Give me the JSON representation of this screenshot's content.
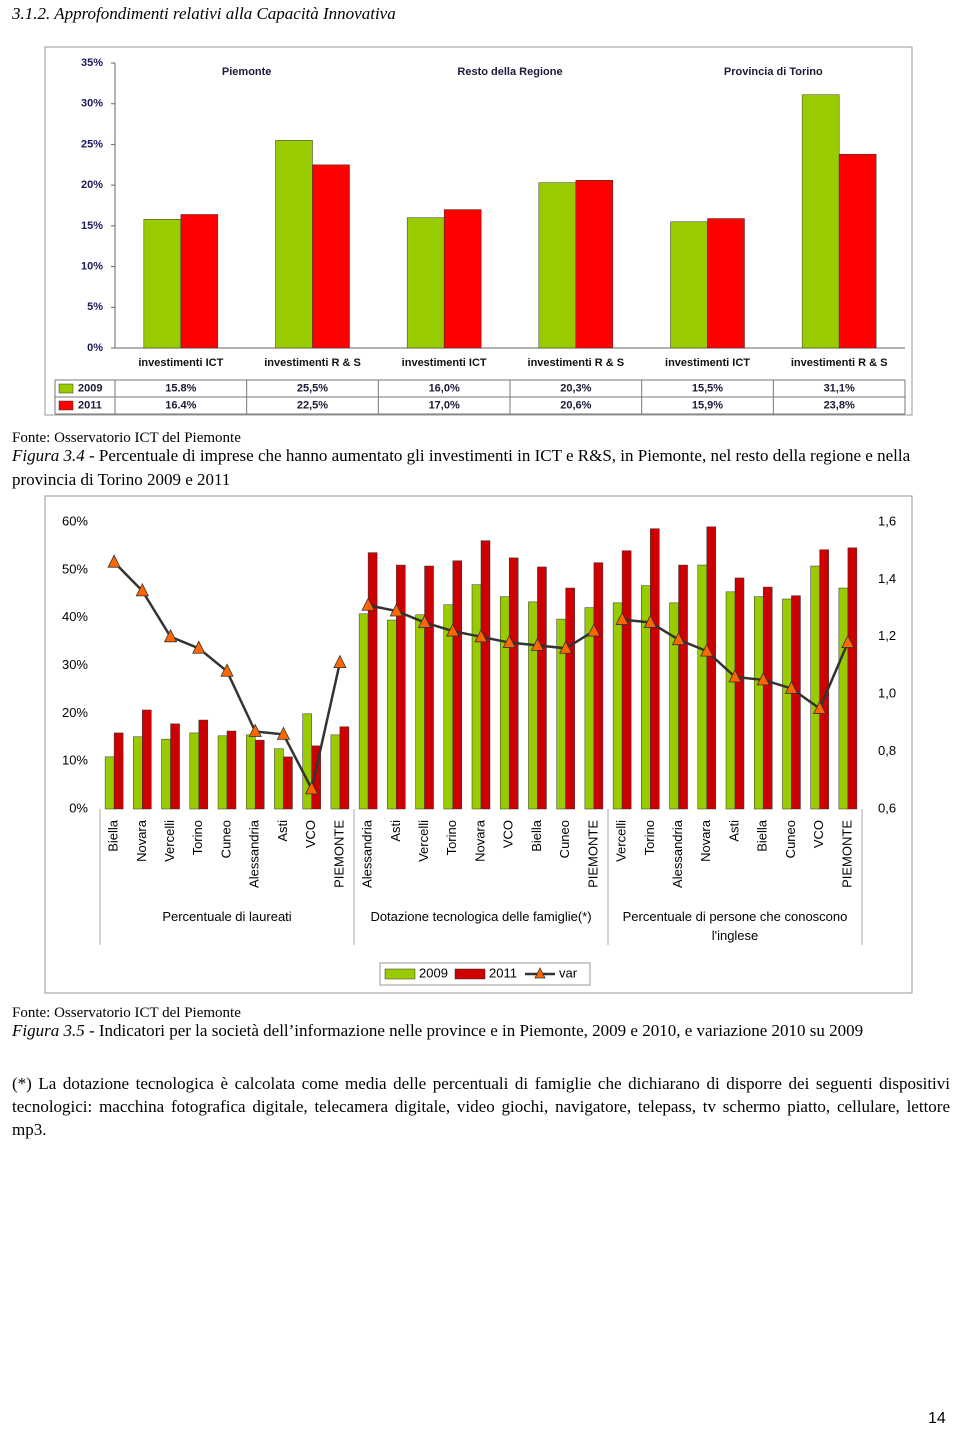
{
  "heading": "3.1.2. Approfondimenti relativi alla Capacità Innovativa",
  "figures": [
    {
      "source": "Fonte: Osservatorio ICT del Piemonte",
      "label": "Figura 3.4",
      "caption": " - Percentuale di imprese che hanno aumentato gli investimenti in ICT e R&S, in Piemonte, nel resto della regione  e nella provincia di Torino 2009 e 2011"
    },
    {
      "source": "Fonte: Osservatorio ICT del Piemonte",
      "label": "Figura 3.5",
      "caption": " - Indicatori per la società dell’informazione nelle province e in Piemonte, 2009 e 2010, e variazione 2010 su 2009"
    }
  ],
  "note": "(*) La dotazione tecnologica è calcolata come media delle percentuali di famiglie che dichiarano di disporre dei seguenti dispositivi tecnologici: macchina fotografica digitale, telecamera digitale, video giochi, navigatore, telepass, tv schermo piatto, cellulare, lettore mp3.",
  "page_number": "14",
  "chart_data": [
    {
      "type": "bar",
      "groups": [
        "Piemonte",
        "Resto della Regione",
        "Provincia di Torino"
      ],
      "categories": [
        [
          "investimenti ICT",
          "investimenti R & S"
        ],
        [
          "investimenti ICT",
          "investimenti R & S"
        ],
        [
          "investimenti ICT",
          "investimenti R & S"
        ]
      ],
      "series": [
        {
          "name": "2009",
          "color": "#99cc00",
          "values": [
            [
              15.8,
              25.5
            ],
            [
              16.0,
              20.3
            ],
            [
              15.5,
              31.1
            ]
          ],
          "value_labels": [
            [
              "15.8%",
              "25,5%"
            ],
            [
              "16,0%",
              "20,3%"
            ],
            [
              "15,5%",
              "31,1%"
            ]
          ]
        },
        {
          "name": "2011",
          "color": "#ff0000",
          "values": [
            [
              16.4,
              22.5
            ],
            [
              17.0,
              20.6
            ],
            [
              15.9,
              23.8
            ]
          ],
          "value_labels": [
            [
              "16.4%",
              "22,5%"
            ],
            [
              "17,0%",
              "20,6%"
            ],
            [
              "15,9%",
              "23,8%"
            ]
          ]
        }
      ],
      "ylim": [
        0,
        35
      ],
      "yticks": [
        {
          "value": 0,
          "label": "0%"
        },
        {
          "value": 5,
          "label": "5%"
        },
        {
          "value": 10,
          "label": "10%"
        },
        {
          "value": 15,
          "label": "15%"
        },
        {
          "value": 20,
          "label": "20%"
        },
        {
          "value": 25,
          "label": "25%"
        },
        {
          "value": 30,
          "label": "30%"
        },
        {
          "value": 35,
          "label": "35%"
        }
      ]
    },
    {
      "type": "bar-line",
      "groups": [
        "Percentuale di laureati",
        "Dotazione tecnologica delle famiglie(*)",
        "Percentuale di persone che conoscono l'inglese"
      ],
      "categories": [
        [
          "Biella",
          "Novara",
          "Vercelli",
          "Torino",
          "Cuneo",
          "Alessandria",
          "Asti",
          "VCO",
          "PIEMONTE"
        ],
        [
          "Alessandria",
          "Asti",
          "Vercelli",
          "Torino",
          "Novara",
          "VCO",
          "Biella",
          "Cuneo",
          "PIEMONTE"
        ],
        [
          "Vercelli",
          "Torino",
          "Alessandria",
          "Novara",
          "Asti",
          "Biella",
          "Cuneo",
          "VCO",
          "PIEMONTE"
        ]
      ],
      "series": [
        {
          "name": "2009",
          "color": "#99cc00",
          "values": [
            [
              10.9,
              15.1,
              14.6,
              15.9,
              15.3,
              15.5,
              12.6,
              19.9,
              15.5
            ],
            [
              40.8,
              39.5,
              40.6,
              42.7,
              46.9,
              44.4,
              43.3,
              39.7,
              42.1
            ],
            [
              43.1,
              46.7,
              43.1,
              51.0,
              45.4,
              44.4,
              43.9,
              50.8,
              46.2
            ]
          ]
        },
        {
          "name": "2011",
          "color": "#cc0000",
          "values": [
            [
              15.9,
              20.7,
              17.8,
              18.6,
              16.3,
              14.4,
              10.9,
              13.2,
              17.2
            ],
            [
              53.6,
              51.0,
              50.8,
              51.9,
              56.1,
              52.5,
              50.6,
              46.2,
              51.5
            ],
            [
              54.0,
              58.6,
              51.0,
              59.0,
              48.3,
              46.4,
              44.6,
              54.2,
              54.6
            ]
          ]
        },
        {
          "name": "var",
          "type": "line",
          "axis": "y2",
          "color": "#333333",
          "marker_color": "#ff6600",
          "values": [
            [
              1.46,
              1.36,
              1.2,
              1.16,
              1.08,
              0.87,
              0.86,
              0.67,
              1.11
            ],
            [
              1.31,
              1.29,
              1.25,
              1.22,
              1.2,
              1.18,
              1.17,
              1.16,
              1.22
            ],
            [
              1.26,
              1.25,
              1.19,
              1.15,
              1.06,
              1.05,
              1.02,
              0.95,
              1.18
            ]
          ]
        }
      ],
      "ylim": [
        0,
        60
      ],
      "yticks": [
        {
          "value": 0,
          "label": "0%"
        },
        {
          "value": 10,
          "label": "10%"
        },
        {
          "value": 20,
          "label": "20%"
        },
        {
          "value": 30,
          "label": "30%"
        },
        {
          "value": 40,
          "label": "40%"
        },
        {
          "value": 50,
          "label": "50%"
        },
        {
          "value": 60,
          "label": "60%"
        }
      ],
      "y2lim": [
        0.6,
        1.6
      ],
      "y2ticks": [
        {
          "value": 0.6,
          "label": "0,6"
        },
        {
          "value": 0.8,
          "label": "0,8"
        },
        {
          "value": 1.0,
          "label": "1,0"
        },
        {
          "value": 1.2,
          "label": "1,2"
        },
        {
          "value": 1.4,
          "label": "1,4"
        },
        {
          "value": 1.6,
          "label": "1,6"
        }
      ]
    }
  ]
}
